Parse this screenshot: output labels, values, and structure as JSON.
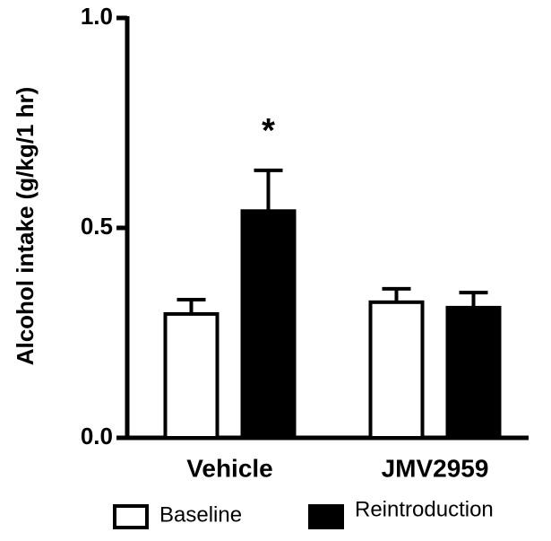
{
  "chart_data": {
    "type": "bar",
    "y_label": "Alcohol intake (g/kg/1 hr)",
    "categories": [
      "Vehicle",
      "JMV2959"
    ],
    "series": [
      {
        "name": "Baseline",
        "color": "#ffffff",
        "values": [
          0.295,
          0.323
        ],
        "errors": [
          0.034,
          0.032
        ]
      },
      {
        "name": "Reintroduction",
        "color": "#000000",
        "values": [
          0.54,
          0.31
        ],
        "errors": [
          0.097,
          0.036
        ]
      }
    ],
    "annotation": "*",
    "ylim": [
      0,
      1.0
    ],
    "yticks": [
      {
        "value": 0,
        "label": "0.0"
      },
      {
        "value": 0.5,
        "label": "0.5"
      },
      {
        "value": 1.0,
        "label": "1.0"
      }
    ]
  }
}
